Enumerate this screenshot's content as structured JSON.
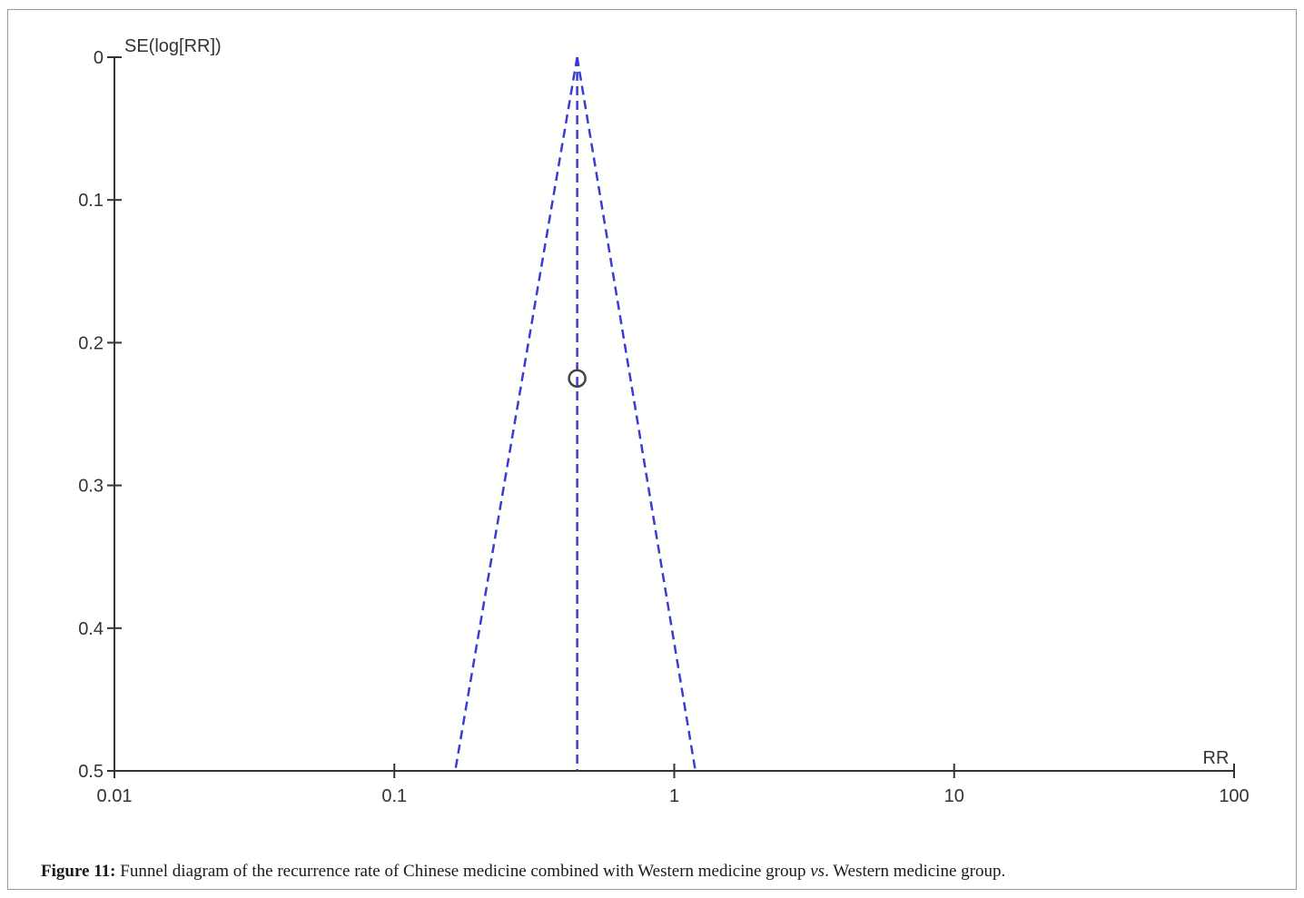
{
  "caption": {
    "label": "Figure 11:",
    "text_before": " Funnel diagram of the recurrence rate of Chinese medicine combined with Western medicine group ",
    "vs": "vs",
    "text_after": ". Western medicine group."
  },
  "chart_data": {
    "type": "scatter",
    "title": "",
    "xlabel": "RR",
    "ylabel": "SE(log[RR])",
    "x_scale": "log",
    "xlim": [
      0.01,
      100
    ],
    "ylim": [
      0.5,
      0
    ],
    "y_axis_inverted": true,
    "x_ticks": [
      "0.01",
      "0.1",
      "1",
      "10",
      "100"
    ],
    "x_tick_values": [
      0.01,
      0.1,
      1,
      10,
      100
    ],
    "y_ticks": [
      "0",
      "0.1",
      "0.2",
      "0.3",
      "0.4",
      "0.5"
    ],
    "y_tick_values": [
      0,
      0.1,
      0.2,
      0.3,
      0.4,
      0.5
    ],
    "points": [
      {
        "x": 0.45,
        "y": 0.225
      }
    ],
    "pooled_estimate_rr": 0.45,
    "funnel_limits_at_se_0_5": [
      0.165,
      1.19
    ],
    "grid": false,
    "colors": {
      "funnel": "#3b3bd6",
      "axis": "#333333",
      "point": "#444444"
    }
  }
}
